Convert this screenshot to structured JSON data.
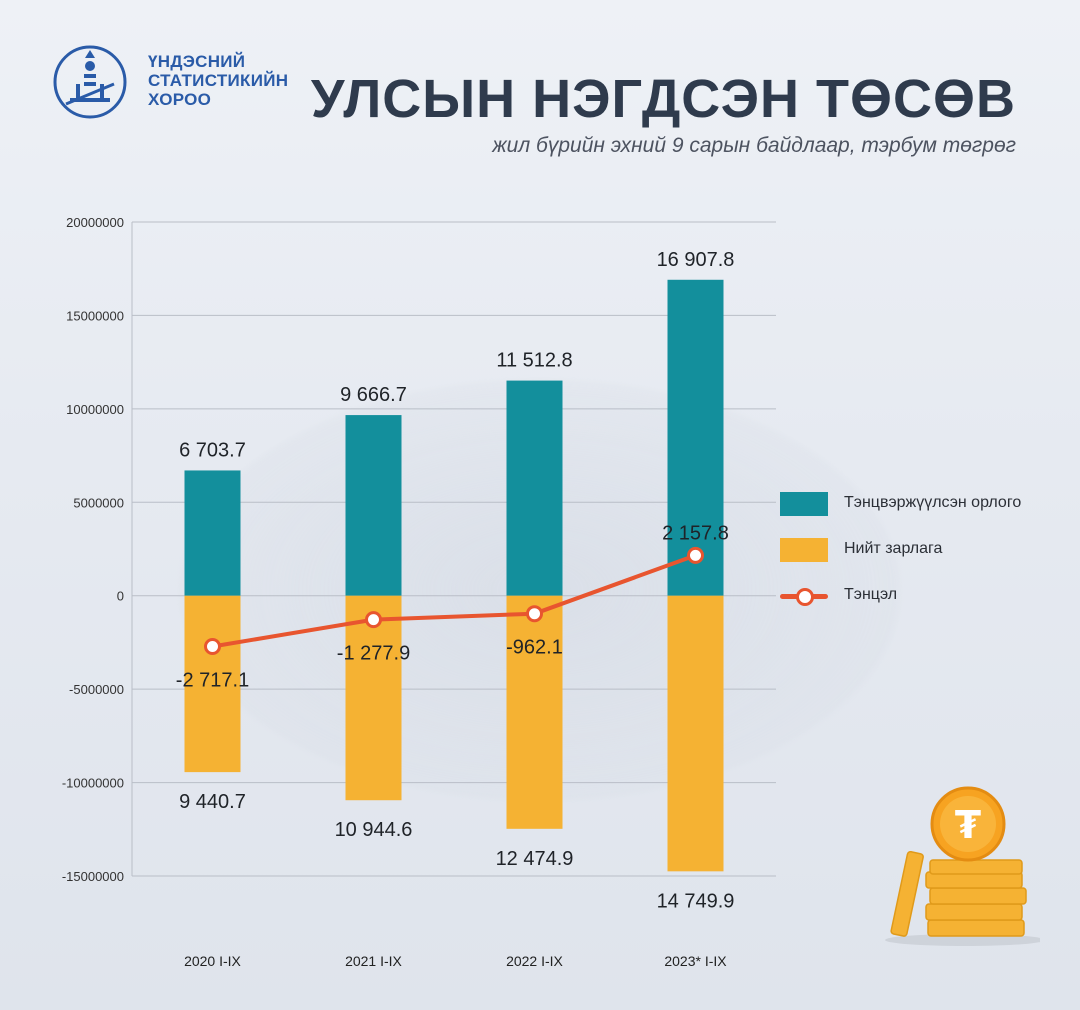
{
  "header": {
    "org_line1": "ҮНДЭСНИЙ",
    "org_line2": "СТАТИСТИКИЙН",
    "org_line3": "ХОРОО",
    "title": "УЛСЫН НЭГДСЭН ТӨСӨВ",
    "subtitle": "жил бүрийн эхний 9 сарын байдлаар, тэрбум төгрөг"
  },
  "colors": {
    "revenue": "#138f9c",
    "expenditure": "#f5b233",
    "balance": "#e8552f"
  },
  "icons": {
    "logo": "soyombo-emblem-icon",
    "coins": "tugrik-coin-stack-icon"
  },
  "chart_data": {
    "type": "bar",
    "categories": [
      "2020 I-IX",
      "2021 I-IX",
      "2022 I-IX",
      "2023* I-IX"
    ],
    "ylim": [
      -15000000,
      20000000
    ],
    "yticks": [
      20000000,
      15000000,
      10000000,
      5000000,
      0,
      -5000000,
      -10000000,
      -15000000
    ],
    "ytick_labels": [
      "20000000",
      "15000000",
      "10000000",
      "5000000",
      "0",
      "-5000000",
      "-10000000",
      "-15000000"
    ],
    "grid": true,
    "legend_position": "right",
    "series": [
      {
        "name": "Тэнцвэржүүлсэн орлого",
        "type": "bar",
        "values": [
          6703700,
          9666700,
          11512800,
          16907800
        ],
        "labels": [
          "6 703.7",
          "9 666.7",
          "11 512.8",
          "16 907.8"
        ]
      },
      {
        "name": "Нийт зарлага",
        "type": "bar",
        "values": [
          -9440700,
          -10944600,
          -12474900,
          -14749900
        ],
        "labels": [
          "9 440.7",
          "10 944.6",
          "12 474.9",
          "14 749.9"
        ]
      },
      {
        "name": "Тэнцэл",
        "type": "line",
        "values": [
          -2717100,
          -1277900,
          -962100,
          2157800
        ],
        "labels": [
          "-2 717.1",
          "-1 277.9",
          "-962.1",
          "2 157.8"
        ]
      }
    ]
  }
}
